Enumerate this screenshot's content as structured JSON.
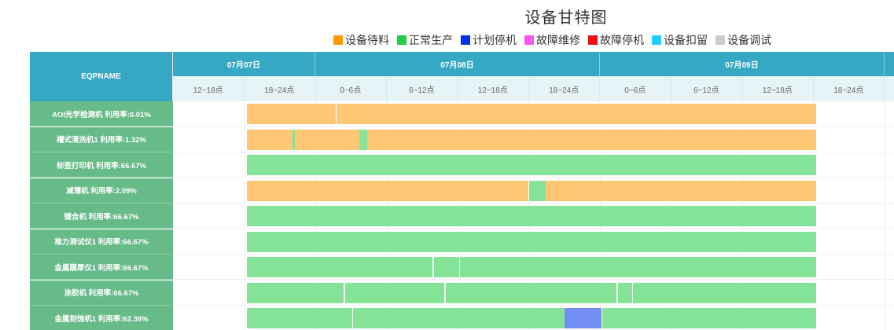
{
  "title": "设备甘特图",
  "legend": [
    {
      "label": "设备待料",
      "color": "#ff9900"
    },
    {
      "label": "正常生产",
      "color": "#22cc44"
    },
    {
      "label": "计划停机",
      "color": "#0033ee"
    },
    {
      "label": "故障维修",
      "color": "#ff55ee"
    },
    {
      "label": "故障停机",
      "color": "#ee1111"
    },
    {
      "label": "设备扣留",
      "color": "#22ccff"
    },
    {
      "label": "设备调试",
      "color": "#cccccc"
    }
  ],
  "chart_data": {
    "type": "gantt",
    "title": "设备甘特图",
    "column_header": "EQPNAME",
    "days": [
      {
        "label": "07月07日",
        "slots": [
          "12~18点",
          "18~24点"
        ]
      },
      {
        "label": "07月08日",
        "slots": [
          "0~6点",
          "6~12点",
          "12~18点",
          "18~24点"
        ]
      },
      {
        "label": "07月09日",
        "slots": [
          "0~6点",
          "6~12点",
          "12~18点",
          "18~24点"
        ]
      }
    ],
    "x_range_hours": [
      12,
      66
    ],
    "rows": [
      {
        "label": "AOI光学检测机 利用率:0.01%",
        "segments": [
          {
            "status": "设备待料",
            "start": 18.2,
            "end": 25.7
          },
          {
            "status": "设备待料",
            "start": 25.8,
            "end": 66.2
          }
        ]
      },
      {
        "label": "槽式清洗机1 利用率:1.32%",
        "segments": [
          {
            "status": "设备待料",
            "start": 18.2,
            "end": 22.1
          },
          {
            "status": "正常生产",
            "start": 22.1,
            "end": 22.3
          },
          {
            "status": "设备待料",
            "start": 22.3,
            "end": 27.7
          },
          {
            "status": "正常生产",
            "start": 27.7,
            "end": 28.4
          },
          {
            "status": "设备待料",
            "start": 28.4,
            "end": 66.2
          }
        ]
      },
      {
        "label": "标签打印机 利用率:66.67%",
        "segments": [
          {
            "status": "正常生产",
            "start": 18.2,
            "end": 66.2
          }
        ]
      },
      {
        "label": "减薄机 利用率:2.09%",
        "segments": [
          {
            "status": "设备待料",
            "start": 18.2,
            "end": 42.0
          },
          {
            "status": "正常生产",
            "start": 42.0,
            "end": 43.4
          },
          {
            "status": "设备待料",
            "start": 43.4,
            "end": 66.2
          }
        ]
      },
      {
        "label": "键合机 利用率:66.67%",
        "segments": [
          {
            "status": "正常生产",
            "start": 18.2,
            "end": 66.2
          }
        ]
      },
      {
        "label": "推力测试仪1 利用率:66.67%",
        "segments": [
          {
            "status": "正常生产",
            "start": 18.2,
            "end": 66.2
          }
        ]
      },
      {
        "label": "金属膜厚仪1 利用率:66.67%",
        "segments": [
          {
            "status": "正常生产",
            "start": 18.2,
            "end": 33.9
          },
          {
            "status": "正常生产",
            "start": 34.0,
            "end": 36.1
          },
          {
            "status": "正常生产",
            "start": 36.2,
            "end": 66.2
          }
        ]
      },
      {
        "label": "涂胶机 利用率:66.67%",
        "segments": [
          {
            "status": "正常生产",
            "start": 18.2,
            "end": 26.4
          },
          {
            "status": "正常生产",
            "start": 26.5,
            "end": 34.9
          },
          {
            "status": "正常生产",
            "start": 35.0,
            "end": 49.4
          },
          {
            "status": "正常生产",
            "start": 49.5,
            "end": 50.7
          },
          {
            "status": "正常生产",
            "start": 50.8,
            "end": 66.2
          }
        ]
      },
      {
        "label": "金属刻蚀机1 利用率:62.38%",
        "segments": [
          {
            "status": "正常生产",
            "start": 18.2,
            "end": 27.1
          },
          {
            "status": "正常生产",
            "start": 27.2,
            "end": 45.0
          },
          {
            "status": "计划停机",
            "start": 45.0,
            "end": 48.1
          },
          {
            "status": "正常生产",
            "start": 48.2,
            "end": 66.2
          }
        ]
      }
    ]
  }
}
